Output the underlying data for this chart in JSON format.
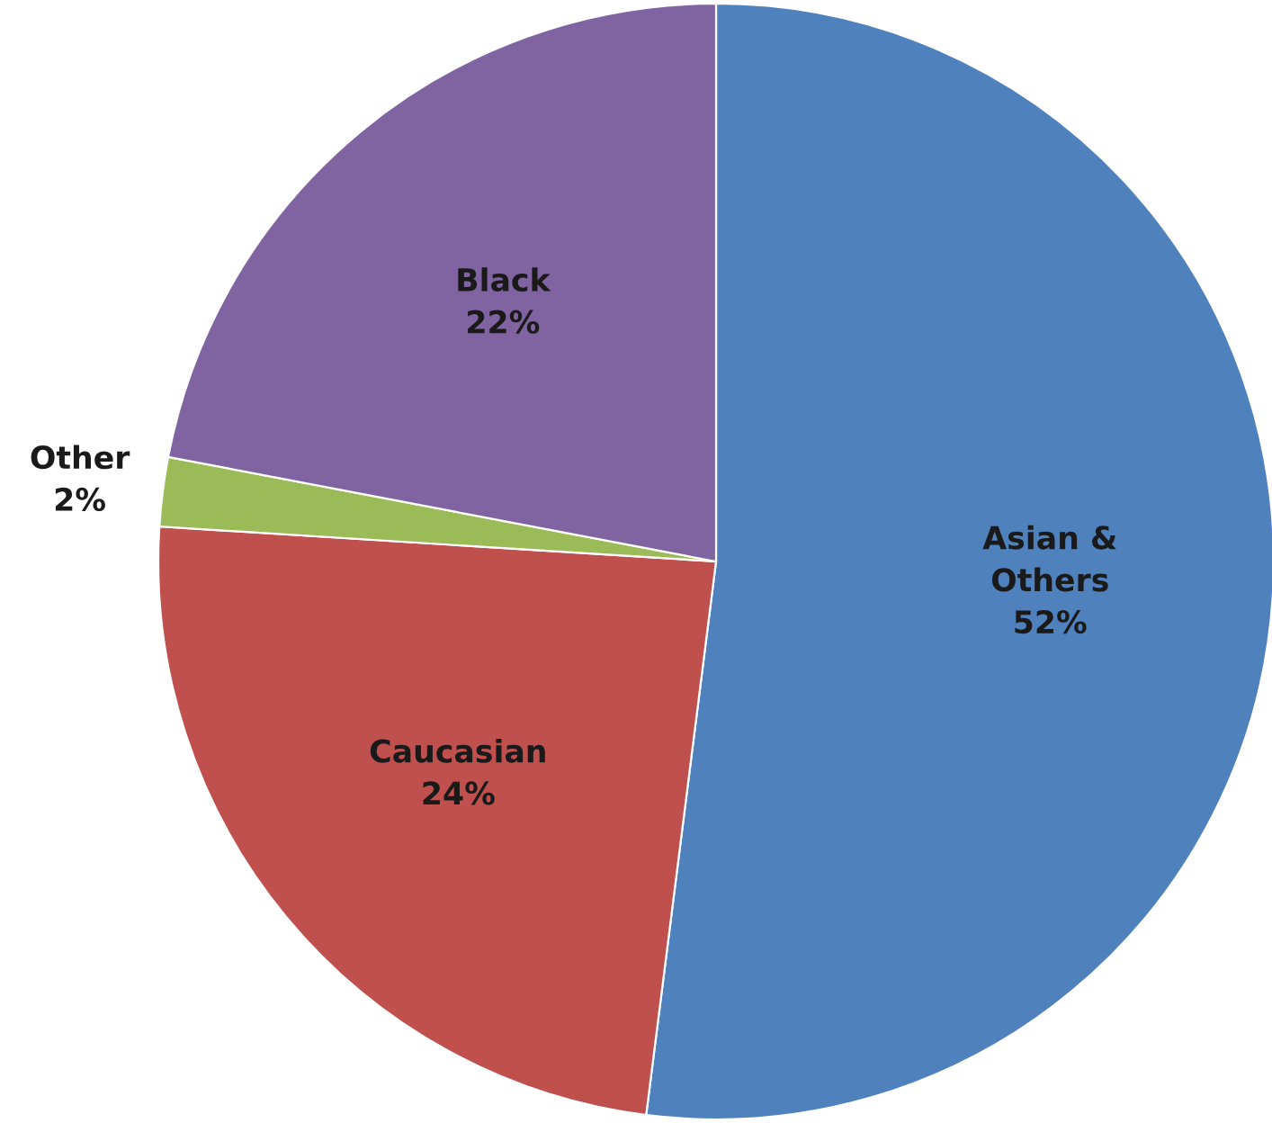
{
  "chart_data": {
    "type": "pie",
    "categories": [
      "Asian &\nOthers",
      "Caucasian",
      "Other",
      "Black"
    ],
    "values": [
      52,
      24,
      2,
      22
    ],
    "colors": [
      "#4f81bd",
      "#c0504d",
      "#9bbb59",
      "#8064a2"
    ],
    "value_labels": [
      "52%",
      "24%",
      "2%",
      "22%"
    ]
  }
}
